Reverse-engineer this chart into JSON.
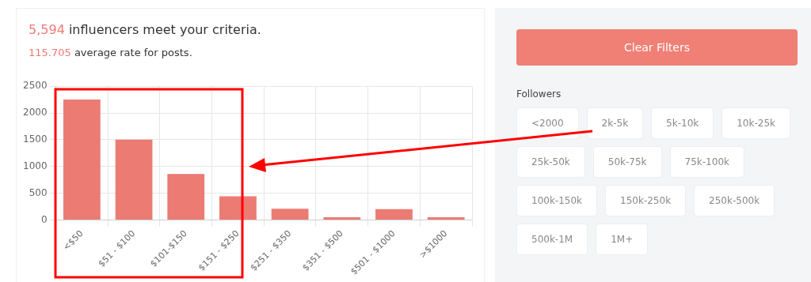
{
  "chart_data": [
    {
      "type": "bar",
      "title": "5,594 influencers meet your criteria.",
      "subtitle": "115.705 average rate for posts.",
      "categories": [
        "<$50",
        "$51 - $100",
        "$101-$150",
        "$151 - $250",
        "$251 - $350",
        "$351 - $500",
        "$501 - $1000",
        ">$1000"
      ],
      "values": [
        2250,
        1500,
        860,
        440,
        210,
        50,
        200,
        50
      ],
      "color": "#ec7b73",
      "ylim": [
        0,
        2500
      ],
      "yticks": [
        0,
        500,
        1000,
        1500,
        2000,
        2500
      ],
      "grid": true,
      "legend": false
    },
    {
      "type": "other",
      "title": "Followers",
      "annotations": [
        "Clear Filters",
        "<2000",
        "2k-5k",
        "5k-10k",
        "10k-25k",
        "25k-50k",
        "50k-75k",
        "75k-100k",
        "100k-150k",
        "150k-250k",
        "250k-500k",
        "500k-1M",
        "1M+"
      ]
    }
  ]
}
